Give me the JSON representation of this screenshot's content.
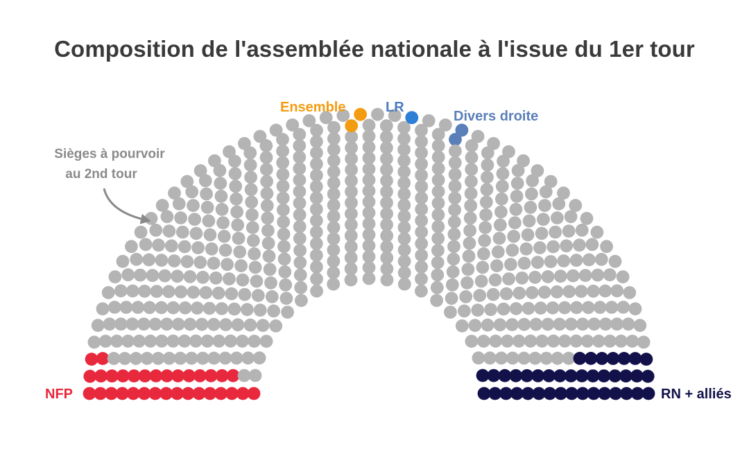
{
  "chart_data": {
    "type": "hemicycle",
    "title": "Composition de l'assemblée nationale à l'issue du 1er tour",
    "total_seats": 577,
    "parties": [
      {
        "name": "NFP",
        "seats": 32,
        "color": "#e8283c"
      },
      {
        "name": "Ensemble",
        "seats": 2,
        "color": "#f39c12"
      },
      {
        "name": "LR",
        "seats": 1,
        "color": "#2e7fd6"
      },
      {
        "name": "Divers droite",
        "seats": 2,
        "color": "#5b7fb8"
      },
      {
        "name": "RN + alliés",
        "seats": 39,
        "color": "#12114a"
      }
    ],
    "undecided": {
      "label": "Sièges à pourvoir au 2nd tour",
      "label_lines": [
        "Sièges à pourvoir",
        "au 2nd tour"
      ],
      "seats": 501,
      "color": "#b4b4b4"
    }
  }
}
